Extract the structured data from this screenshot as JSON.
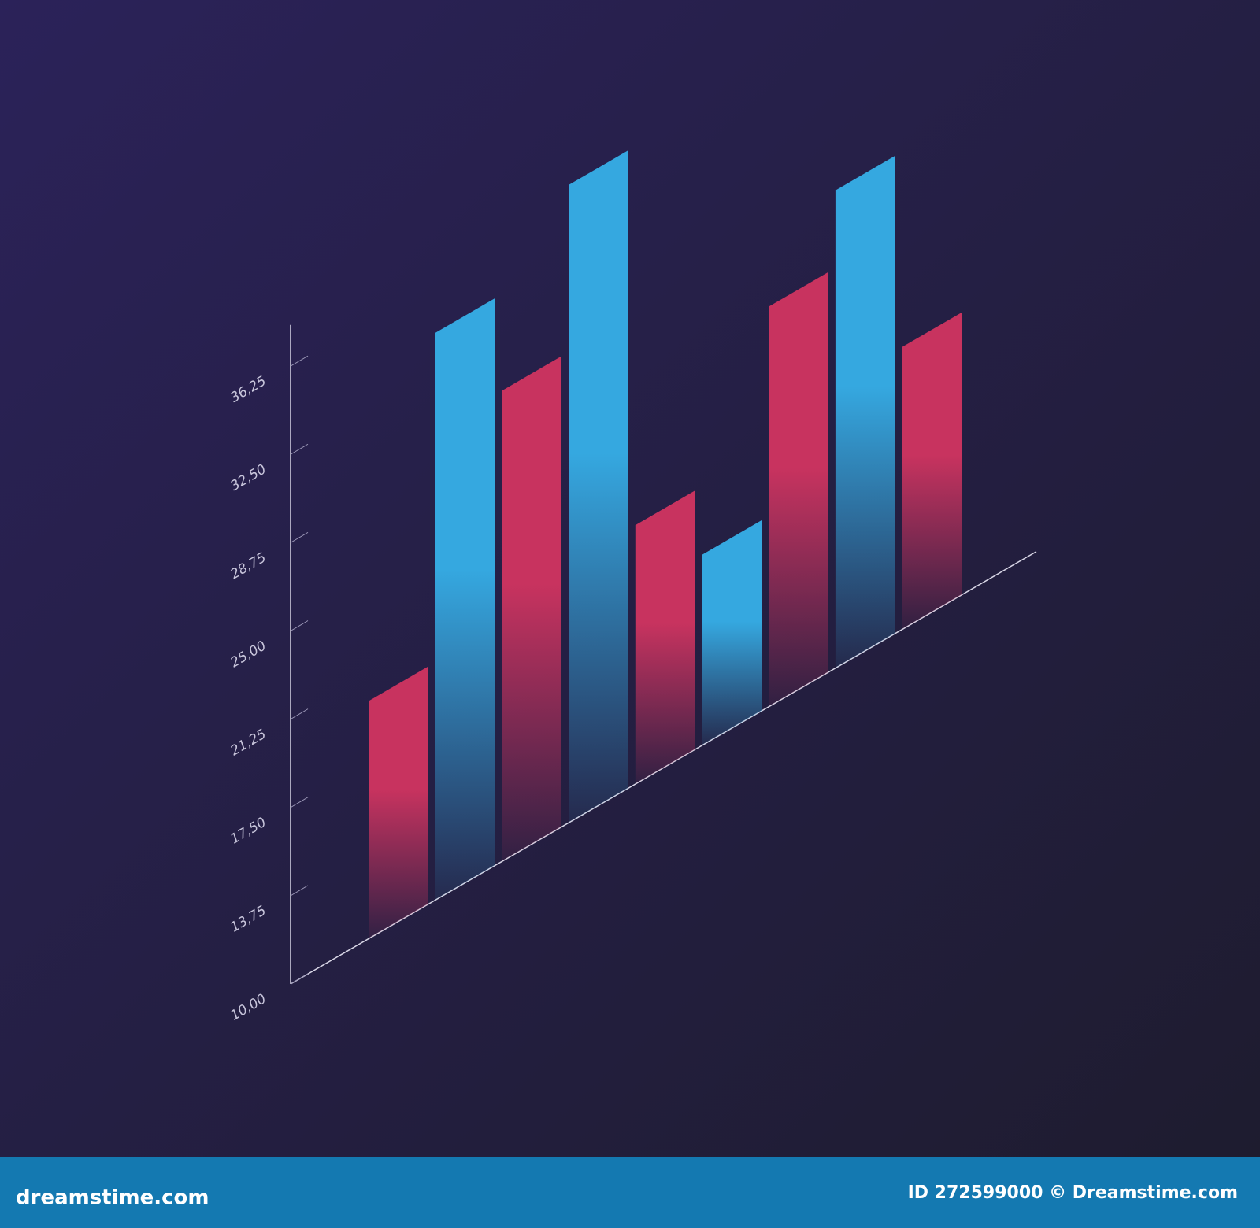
{
  "chart_data": {
    "type": "bar",
    "projection": "isometric",
    "categories": [
      null,
      null,
      null,
      null,
      null,
      null,
      null,
      null,
      null
    ],
    "values": [
      20.1,
      34.1,
      30.0,
      37.1,
      21.0,
      18.1,
      27.0,
      30.3,
      22.0
    ],
    "colors": [
      "#c8335f",
      "#35a8e0",
      "#c8335f",
      "#35a8e0",
      "#c8335f",
      "#35a8e0",
      "#c8335f",
      "#35a8e0",
      "#c8335f"
    ],
    "ylim": [
      10,
      38
    ],
    "yticks": [
      {
        "value": 10,
        "label": "10,00"
      },
      {
        "value": 13.75,
        "label": "13,75"
      },
      {
        "value": 17.5,
        "label": "17,50"
      },
      {
        "value": 21.25,
        "label": "21,25"
      },
      {
        "value": 25,
        "label": "25,00"
      },
      {
        "value": 28.75,
        "label": "28,75"
      },
      {
        "value": 32.5,
        "label": "32,50"
      },
      {
        "value": 36.25,
        "label": "36,25"
      }
    ]
  },
  "footer": {
    "site": "dreamstime.com",
    "credit": "ID 272599000 © Dreamstime.com"
  }
}
